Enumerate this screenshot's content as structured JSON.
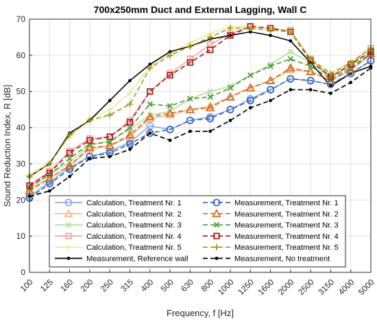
{
  "chart_data": {
    "type": "line",
    "title": "700x250mm Duct and External Lagging, Wall C",
    "xlabel": "Frequency, f [Hz]",
    "ylabel": "Sound Reduction Index, R [dB]",
    "ylim": [
      0,
      70
    ],
    "yticks": [
      0,
      10,
      20,
      30,
      40,
      50,
      60,
      70
    ],
    "grid": true,
    "legend_position": "bottom-center",
    "categories": [
      "100",
      "125",
      "160",
      "200",
      "250",
      "315",
      "400",
      "500",
      "630",
      "800",
      "1000",
      "1250",
      "1600",
      "2000",
      "2500",
      "3150",
      "4000",
      "5000"
    ],
    "series": [
      {
        "name": "Calculation, Treatment Nr. 1",
        "color": "#8fa9dc",
        "style": "solid",
        "marker": "circle-open",
        "values": [
          21.0,
          25.0,
          29.0,
          32.0,
          33.5,
          36.0,
          40.5,
          39.5,
          42.0,
          43.0,
          45.0,
          48.0,
          50.5,
          53.5,
          53.0,
          52.0,
          55.0,
          58.5
        ]
      },
      {
        "name": "Calculation, Treatment Nr. 2",
        "color": "#f5b987",
        "style": "solid",
        "marker": "triangle-open",
        "values": [
          23.0,
          26.0,
          29.5,
          34.0,
          35.0,
          37.5,
          42.5,
          43.5,
          45.0,
          46.0,
          48.5,
          51.0,
          53.0,
          56.0,
          55.5,
          53.0,
          56.0,
          60.0
        ]
      },
      {
        "name": "Calculation, Treatment Nr. 3",
        "color": "#b6dc9c",
        "style": "solid",
        "marker": "x",
        "values": [
          23.5,
          27.0,
          30.5,
          35.0,
          36.5,
          39.5,
          43.5,
          44.5,
          48.0,
          50.0,
          51.5,
          54.5,
          57.5,
          61.0,
          58.0,
          54.0,
          57.0,
          61.0
        ]
      },
      {
        "name": "Calculation, Treatment Nr. 4",
        "color": "#eda5a5",
        "style": "solid",
        "marker": "square-open",
        "values": [
          24.0,
          28.0,
          33.5,
          37.0,
          37.5,
          42.0,
          50.0,
          55.0,
          59.0,
          63.0,
          66.0,
          68.0,
          67.5,
          67.0,
          59.0,
          54.0,
          57.5,
          62.0
        ]
      },
      {
        "name": "Calculation, Treatment Nr. 5",
        "color": "#e8e8a3",
        "style": "solid",
        "marker": "plus",
        "values": [
          27.0,
          30.5,
          37.5,
          42.5,
          45.0,
          49.5,
          57.0,
          60.5,
          63.5,
          66.0,
          68.0,
          68.0,
          67.5,
          67.0,
          59.0,
          54.5,
          58.0,
          62.0
        ]
      },
      {
        "name": "Measurement, Reference wall",
        "color": "#000000",
        "style": "solid",
        "marker": "dot",
        "values": [
          26.5,
          30.0,
          38.5,
          42.0,
          47.5,
          53.0,
          57.5,
          61.0,
          62.5,
          64.5,
          65.5,
          66.5,
          65.5,
          64.0,
          58.0,
          51.5,
          55.0,
          57.0
        ]
      },
      {
        "name": "Measurement, Treatment Nr. 1",
        "color": "#3866c0",
        "style": "dashed",
        "marker": "circle-open",
        "values": [
          20.5,
          24.5,
          28.5,
          32.0,
          33.0,
          35.5,
          38.5,
          39.5,
          42.0,
          42.5,
          45.0,
          47.5,
          50.5,
          53.5,
          53.0,
          52.0,
          55.0,
          58.5
        ]
      },
      {
        "name": "Measurement, Treatment Nr. 2",
        "color": "#d2691e",
        "style": "dashed",
        "marker": "triangle-open",
        "values": [
          22.5,
          26.0,
          29.5,
          34.5,
          35.0,
          38.0,
          43.0,
          44.0,
          45.0,
          45.5,
          48.5,
          51.0,
          53.0,
          56.5,
          55.5,
          53.0,
          56.0,
          60.5
        ]
      },
      {
        "name": "Measurement, Treatment Nr. 3",
        "color": "#4e9a3a",
        "style": "dashed",
        "marker": "x",
        "values": [
          23.5,
          27.0,
          31.5,
          35.5,
          36.0,
          40.0,
          46.5,
          46.0,
          48.0,
          48.5,
          51.0,
          54.5,
          57.0,
          59.0,
          57.0,
          53.5,
          56.5,
          60.5
        ]
      },
      {
        "name": "Measurement, Treatment Nr. 4",
        "color": "#b01e1e",
        "style": "dashed",
        "marker": "square-open",
        "values": [
          24.0,
          27.5,
          33.0,
          36.5,
          37.5,
          41.5,
          50.0,
          54.5,
          58.0,
          61.5,
          65.5,
          68.0,
          67.5,
          66.5,
          58.5,
          54.0,
          57.5,
          61.0
        ]
      },
      {
        "name": "Measurement, Treatment Nr. 5",
        "color": "#9f9a12",
        "style": "dashed",
        "marker": "plus",
        "values": [
          26.5,
          30.0,
          38.0,
          42.0,
          43.5,
          46.5,
          56.5,
          60.0,
          62.5,
          65.0,
          67.5,
          67.5,
          67.0,
          66.5,
          59.0,
          55.0,
          58.0,
          62.0
        ]
      },
      {
        "name": "Measurement, No treatment",
        "color": "#000000",
        "style": "dashed",
        "marker": "dot",
        "values": [
          21.0,
          22.5,
          26.5,
          31.5,
          32.0,
          34.0,
          38.5,
          36.5,
          39.0,
          39.0,
          42.0,
          45.5,
          47.5,
          50.5,
          50.5,
          49.5,
          52.5,
          56.5
        ]
      }
    ],
    "legend_order": [
      0,
      6,
      1,
      7,
      2,
      8,
      3,
      9,
      4,
      10,
      5,
      11
    ]
  }
}
